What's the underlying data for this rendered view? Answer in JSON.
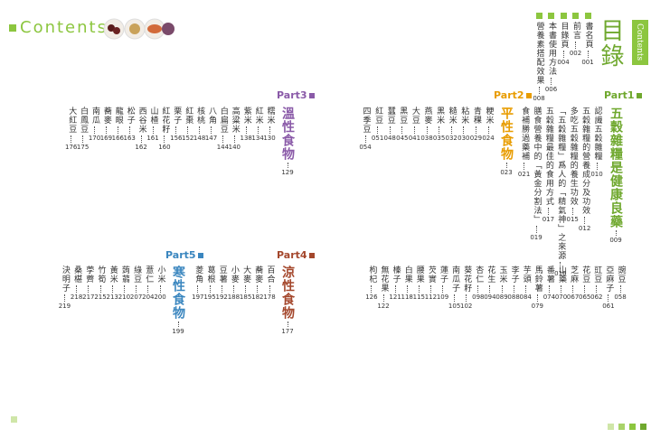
{
  "header": {
    "left_title": "Contents",
    "right_tab": "Contents",
    "title": "目錄"
  },
  "front_matter": [
    {
      "name": "書名頁",
      "page": "001"
    },
    {
      "name": "前言",
      "page": "002"
    },
    {
      "name": "目錄頁",
      "page": "004"
    },
    {
      "name": "本書使用方法",
      "page": "006"
    },
    {
      "name": "營養素搭配效果",
      "page": "008"
    }
  ],
  "parts": [
    {
      "label": "Part1",
      "title": "五穀雜糧是健康良藥",
      "page": "009",
      "color": "#6fa82e",
      "entries": [
        {
          "name": "認識五穀雜糧",
          "page": "010"
        },
        {
          "name": "五穀雜糧的營養成分及功效",
          "page": "012"
        },
        {
          "name": "多吃五穀雜糧的養生功效",
          "page": "015"
        },
        {
          "name": "「五穀雜糧」爲人的「精氣神」之來源",
          "page": "016"
        },
        {
          "name": "五穀雜糧最佳的食用方式",
          "page": "017"
        },
        {
          "name": "膳食營養中的「黃金分割法」",
          "page": "019"
        },
        {
          "name": "食補勝過藥補",
          "page": "021"
        }
      ]
    },
    {
      "label": "Part2",
      "title": "平性食物",
      "page": "023",
      "color": "#e89c00",
      "entries": [
        {
          "name": "粳米",
          "page": "024"
        },
        {
          "name": "青稞",
          "page": "029"
        },
        {
          "name": "粘米",
          "page": "030"
        },
        {
          "name": "糙米",
          "page": "032"
        },
        {
          "name": "黑米",
          "page": "035"
        },
        {
          "name": "燕麥",
          "page": "038"
        },
        {
          "name": "大豆",
          "page": "041"
        },
        {
          "name": "黑豆",
          "page": "045"
        },
        {
          "name": "蠶豆",
          "page": "048"
        },
        {
          "name": "紅豆",
          "page": "051"
        },
        {
          "name": "四季豆",
          "page": "054"
        },
        {
          "name": "豌豆",
          "page": "058"
        },
        {
          "name": "亞麻子",
          "page": "061"
        },
        {
          "name": "豇豆",
          "page": "062"
        },
        {
          "name": "花豆",
          "page": "065"
        },
        {
          "name": "芝麻",
          "page": "067"
        },
        {
          "name": "山藥",
          "page": "070"
        },
        {
          "name": "番薯",
          "page": "074"
        },
        {
          "name": "馬鈴薯",
          "page": "079"
        },
        {
          "name": "芋頭",
          "page": "084"
        },
        {
          "name": "李子",
          "page": "088"
        },
        {
          "name": "玉米",
          "page": "089"
        },
        {
          "name": "花生",
          "page": "094"
        },
        {
          "name": "杏仁",
          "page": "098"
        },
        {
          "name": "葵花籽",
          "page": "102"
        },
        {
          "name": "南瓜子",
          "page": "105"
        },
        {
          "name": "蓮子",
          "page": "109"
        },
        {
          "name": "芡實",
          "page": "112"
        },
        {
          "name": "腰果",
          "page": "115"
        },
        {
          "name": "白果",
          "page": "118"
        },
        {
          "name": "榛子",
          "page": "121"
        },
        {
          "name": "無花果",
          "page": "122"
        },
        {
          "name": "枸杞",
          "page": "126"
        }
      ]
    },
    {
      "label": "Part3",
      "title": "溫性食物",
      "page": "129",
      "color": "#8a5aa8",
      "entries": [
        {
          "name": "糯米",
          "page": "130"
        },
        {
          "name": "紅米",
          "page": "134"
        },
        {
          "name": "紫米",
          "page": "138"
        },
        {
          "name": "高粱米",
          "page": "140"
        },
        {
          "name": "白扁豆",
          "page": "144"
        },
        {
          "name": "八角",
          "page": "147"
        },
        {
          "name": "核桃",
          "page": "148"
        },
        {
          "name": "紅棗",
          "page": "152"
        },
        {
          "name": "栗子",
          "page": "156"
        },
        {
          "name": "紅花籽",
          "page": "160"
        },
        {
          "name": "山楂",
          "page": "161"
        },
        {
          "name": "西谷米",
          "page": "162"
        },
        {
          "name": "松子",
          "page": "163"
        },
        {
          "name": "龍眼",
          "page": "166"
        },
        {
          "name": "蕎麥",
          "page": "169"
        },
        {
          "name": "南瓜",
          "page": "170"
        },
        {
          "name": "白鳳豆",
          "page": "175"
        },
        {
          "name": "大紅豆",
          "page": "176"
        }
      ]
    },
    {
      "label": "Part4",
      "title": "涼性食物",
      "page": "177",
      "color": "#a4472c",
      "entries": [
        {
          "name": "百合",
          "page": "178"
        },
        {
          "name": "蕎麥",
          "page": "182"
        },
        {
          "name": "大麥",
          "page": "185"
        },
        {
          "name": "小麥",
          "page": "188"
        },
        {
          "name": "豆薯",
          "page": "192"
        },
        {
          "name": "葛根",
          "page": "195"
        },
        {
          "name": "菱角",
          "page": "197"
        }
      ]
    },
    {
      "label": "Part5",
      "title": "寒性食物",
      "page": "199",
      "color": "#3a86bf",
      "entries": [
        {
          "name": "小米",
          "page": "200"
        },
        {
          "name": "薏仁",
          "page": "204"
        },
        {
          "name": "綠豆",
          "page": "207"
        },
        {
          "name": "蒟蒻",
          "page": "210"
        },
        {
          "name": "黃米",
          "page": "213"
        },
        {
          "name": "竹筍",
          "page": "215"
        },
        {
          "name": "荸薺",
          "page": "217"
        },
        {
          "name": "桑椹",
          "page": "218"
        },
        {
          "name": "決明子",
          "page": "219"
        }
      ]
    }
  ]
}
